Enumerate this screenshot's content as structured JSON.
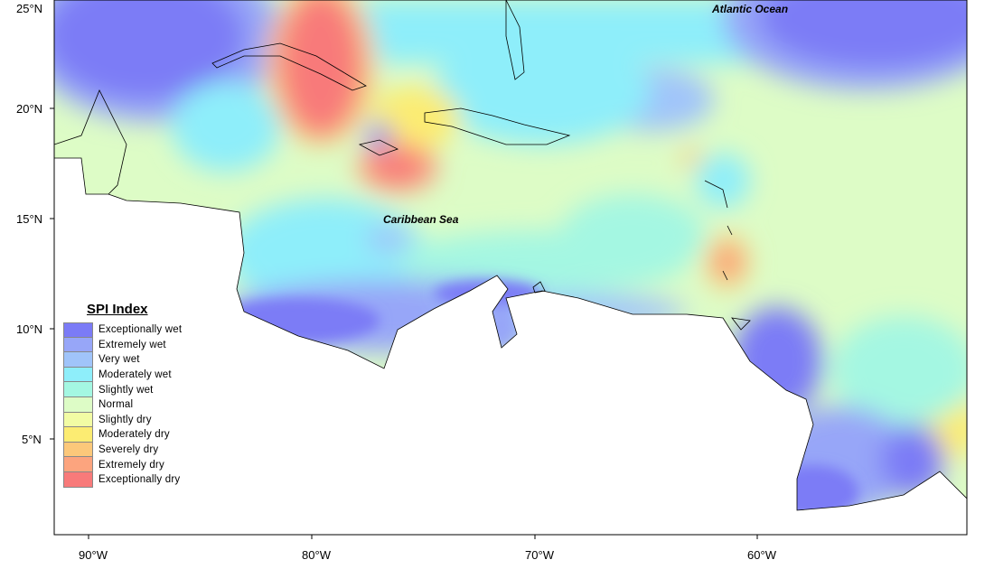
{
  "map": {
    "legend": {
      "title": "SPI Index",
      "items": [
        {
          "label": "Exceptionally wet",
          "color": "#7b7bf6"
        },
        {
          "label": "Extremely wet",
          "color": "#97a6f8"
        },
        {
          "label": "Very wet",
          "color": "#a0c4fa"
        },
        {
          "label": "Moderately wet",
          "color": "#8eeefa"
        },
        {
          "label": "Slightly wet",
          "color": "#a4f7e2"
        },
        {
          "label": "Normal",
          "color": "#ddfcc6"
        },
        {
          "label": "Slightly dry",
          "color": "#f2fca4"
        },
        {
          "label": "Moderately dry",
          "color": "#fcec72"
        },
        {
          "label": "Severely dry",
          "color": "#fcc87a"
        },
        {
          "label": "Extremely dry",
          "color": "#fca47e"
        },
        {
          "label": "Exceptionally dry",
          "color": "#f87a7a"
        }
      ]
    },
    "labels": {
      "atlantic": "Atlantic Ocean",
      "caribbean": "Caribbean Sea"
    },
    "y_ticks": [
      "25°N",
      "20°N",
      "15°N",
      "10°N",
      "5°N"
    ],
    "x_ticks": [
      "90°W",
      "80°W",
      "70°W",
      "60°W"
    ]
  }
}
